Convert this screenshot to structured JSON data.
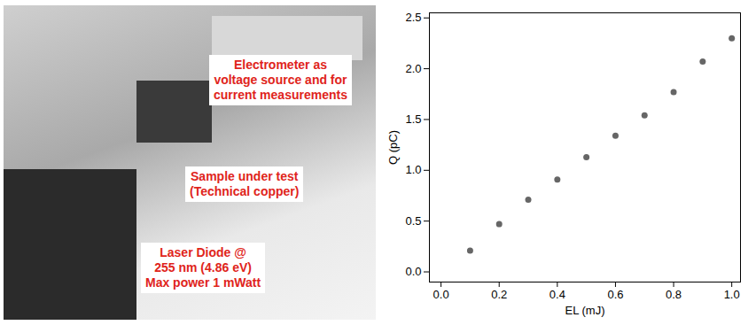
{
  "photo": {
    "labels": [
      {
        "text": "Electrometer as\nvoltage source and for\ncurrent measurements"
      },
      {
        "text": "Sample under test\n(Technical copper)"
      },
      {
        "text": "Laser Diode @\n255 nm (4.86 eV)\nMax power 1 mWatt"
      }
    ]
  },
  "chart_data": {
    "type": "scatter",
    "x_label": "EL (mJ)",
    "y_label": "Q (pC)",
    "x": [
      0.1,
      0.2,
      0.3,
      0.4,
      0.5,
      0.6,
      0.7,
      0.8,
      0.9,
      1.0
    ],
    "values": [
      0.21,
      0.47,
      0.71,
      0.91,
      1.13,
      1.34,
      1.54,
      1.77,
      2.07,
      2.3
    ],
    "color": "#666666",
    "marker": "circle",
    "xlim": [
      -0.04,
      1.03
    ],
    "xticks": [
      {
        "value": 0,
        "label": "0.0"
      },
      {
        "value": 0.2,
        "label": "0.2"
      },
      {
        "value": 0.4,
        "label": "0.4"
      },
      {
        "value": 0.6,
        "label": "0.6"
      },
      {
        "value": 0.8,
        "label": "0.8"
      },
      {
        "value": 1.0,
        "label": "1.0"
      }
    ],
    "ylim": [
      -0.1,
      2.55
    ],
    "yticks": [
      {
        "value": 0,
        "label": "0.0"
      },
      {
        "value": 0.5,
        "label": "0.5"
      },
      {
        "value": 1.0,
        "label": "1.0"
      },
      {
        "value": 1.5,
        "label": "1.5"
      },
      {
        "value": 2.0,
        "label": "2.0"
      },
      {
        "value": 2.5,
        "label": "2.5"
      }
    ],
    "grid": false
  }
}
